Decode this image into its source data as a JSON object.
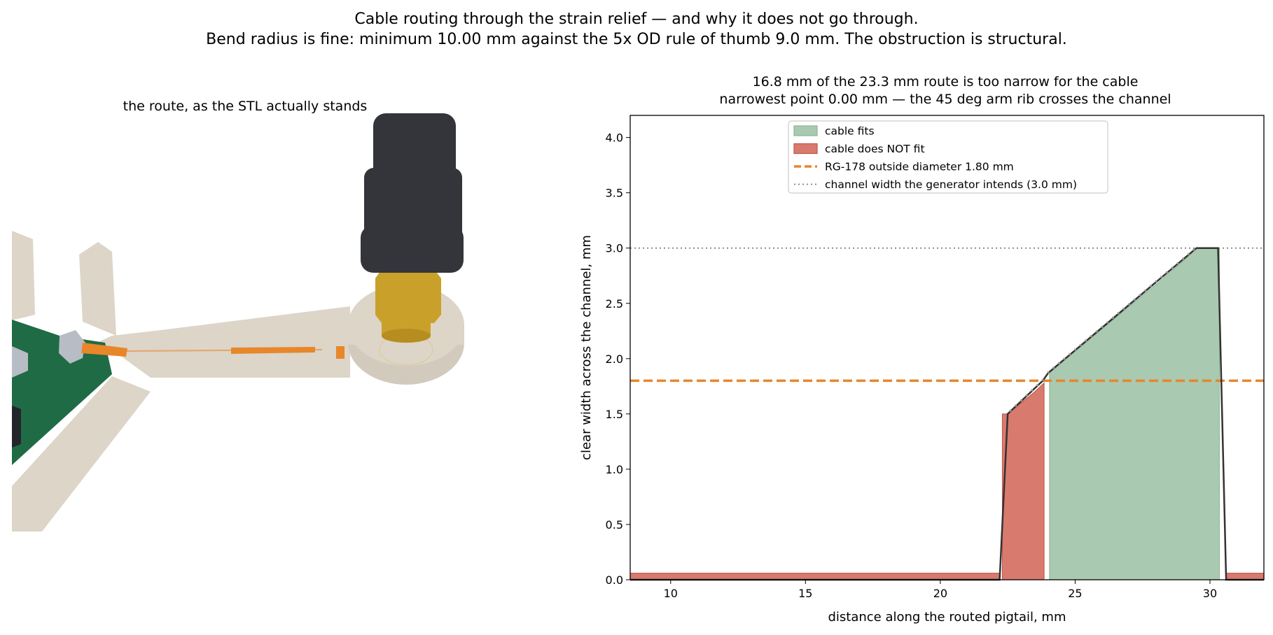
{
  "figure": {
    "suptitle_line1": "Cable routing through the strain relief — and why it does not go through.",
    "suptitle_line2": "Bend radius is fine: minimum 10.00 mm against the 5x OD rule of thumb 9.0 mm.  The obstruction is structural."
  },
  "left_panel": {
    "title": "the route, as the STL actually stands",
    "colors": {
      "bracket": "#dcd5c8",
      "pcb": "#1f6b45",
      "cable": "#e8862a",
      "connector_body": "#c9a02a",
      "connector_nut": "#34353a",
      "clip": "#b8bcc4"
    }
  },
  "chart_data": {
    "type": "area",
    "title_line1": "16.8 mm of the 23.3 mm route is too narrow for the cable",
    "title_line2": "narrowest point 0.00 mm — the 45 deg arm rib crosses the channel",
    "xlabel": "distance along the routed pigtail, mm",
    "ylabel": "clear width across the channel, mm",
    "xlim": [
      8.5,
      32.0
    ],
    "ylim": [
      0.0,
      4.2
    ],
    "xticks": [
      10,
      15,
      20,
      25,
      30
    ],
    "xtick_labels": [
      "10",
      "15",
      "20",
      "25",
      "30"
    ],
    "yticks": [
      0.0,
      0.5,
      1.0,
      1.5,
      2.0,
      2.5,
      3.0,
      3.5,
      4.0
    ],
    "ytick_labels": [
      "0.0",
      "0.5",
      "1.0",
      "1.5",
      "2.0",
      "2.5",
      "3.0",
      "3.5",
      "4.0"
    ],
    "grid": false,
    "legend_position": "top-center",
    "width_profile": {
      "x": [
        8.5,
        22.2,
        22.5,
        23.8,
        24.0,
        29.5,
        30.3,
        30.6,
        32.0
      ],
      "y": [
        0.0,
        0.0,
        1.5,
        1.8,
        1.87,
        3.0,
        3.0,
        0.0,
        0.0
      ]
    },
    "fits_regions": [
      {
        "x": [
          24.05,
          24.5,
          25,
          26,
          27,
          28,
          29,
          29.5,
          30.0,
          30.35
        ],
        "y": [
          1.88,
          1.97,
          2.07,
          2.27,
          2.47,
          2.67,
          2.88,
          3.0,
          3.0,
          3.0
        ]
      }
    ],
    "not_fit_regions": [
      {
        "x": [
          8.5,
          22.2
        ],
        "y": [
          0.06,
          0.06
        ]
      },
      {
        "x": [
          22.3,
          22.5,
          23.0,
          23.5,
          23.85
        ],
        "y": [
          1.5,
          1.5,
          1.6,
          1.7,
          1.78
        ]
      },
      {
        "x": [
          30.6,
          32.0
        ],
        "y": [
          0.06,
          0.06
        ]
      }
    ],
    "cable_od": 1.8,
    "intended_width": 3.0,
    "legend": [
      {
        "label": "cable fits",
        "style": "patch",
        "color": "#a9c9b0",
        "edge": "#8ab896"
      },
      {
        "label": "cable does NOT fit",
        "style": "patch",
        "color": "#d87a6e",
        "edge": "#c0574a"
      },
      {
        "label": "RG-178 outside diameter 1.80 mm",
        "style": "dashed",
        "color": "#e8862a"
      },
      {
        "label": "channel width the generator intends (3.0 mm)",
        "style": "dotted",
        "color": "#7f7f7f"
      }
    ],
    "colors": {
      "fits": "#a9c9b0",
      "not_fit": "#d87a6e",
      "od_line": "#e8862a",
      "intended_line": "#7f7f7f",
      "profile_line": "#333333"
    }
  }
}
